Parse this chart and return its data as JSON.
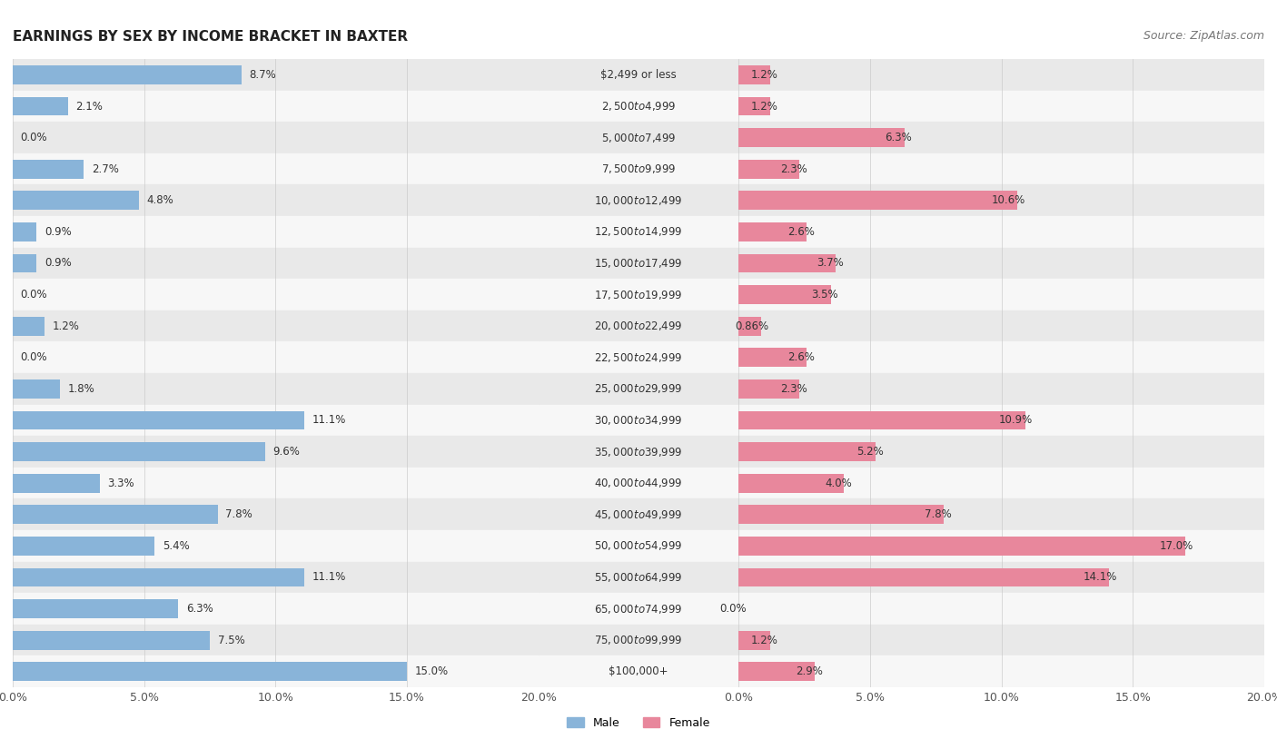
{
  "title": "EARNINGS BY SEX BY INCOME BRACKET IN BAXTER",
  "source": "Source: ZipAtlas.com",
  "categories": [
    "$2,499 or less",
    "$2,500 to $4,999",
    "$5,000 to $7,499",
    "$7,500 to $9,999",
    "$10,000 to $12,499",
    "$12,500 to $14,999",
    "$15,000 to $17,499",
    "$17,500 to $19,999",
    "$20,000 to $22,499",
    "$22,500 to $24,999",
    "$25,000 to $29,999",
    "$30,000 to $34,999",
    "$35,000 to $39,999",
    "$40,000 to $44,999",
    "$45,000 to $49,999",
    "$50,000 to $54,999",
    "$55,000 to $64,999",
    "$65,000 to $74,999",
    "$75,000 to $99,999",
    "$100,000+"
  ],
  "male": [
    8.7,
    2.1,
    0.0,
    2.7,
    4.8,
    0.9,
    0.9,
    0.0,
    1.2,
    0.0,
    1.8,
    11.1,
    9.6,
    3.3,
    7.8,
    5.4,
    11.1,
    6.3,
    7.5,
    15.0
  ],
  "female": [
    1.2,
    1.2,
    6.3,
    2.3,
    10.6,
    2.6,
    3.7,
    3.5,
    0.86,
    2.6,
    2.3,
    10.9,
    5.2,
    4.0,
    7.8,
    17.0,
    14.1,
    0.0,
    1.2,
    2.9
  ],
  "male_color": "#89b4d9",
  "female_color": "#e8879c",
  "xlim": 20.0,
  "row_colors": [
    "#e9e9e9",
    "#f7f7f7"
  ],
  "title_fontsize": 11,
  "source_fontsize": 9,
  "label_fontsize": 8.5,
  "tick_fontsize": 9,
  "value_fontsize": 8.5
}
